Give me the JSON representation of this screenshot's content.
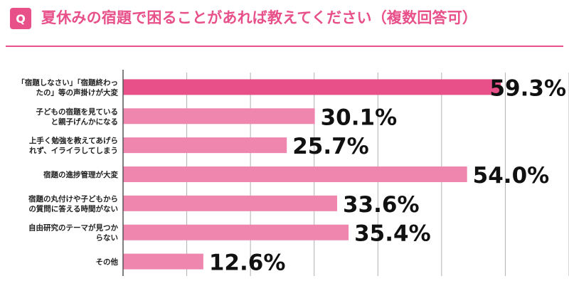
{
  "header": {
    "badge": "Q",
    "title": "夏休みの宿題で困ることがあれば教えてください（複数回答可）"
  },
  "chart_data": {
    "type": "bar",
    "orientation": "horizontal",
    "categories": [
      [
        "「宿題しなさい」「宿題終わっ",
        "たの」等の声掛けが大変"
      ],
      [
        "子どもの宿題を見ている",
        "と親子げんかになる"
      ],
      [
        "上手く勉強を教えてあげら",
        "れず、イライラしてしまう"
      ],
      [
        "宿題の進捗管理が大変"
      ],
      [
        "宿題の丸付けや子どもから",
        "の質問に答える時間がない"
      ],
      [
        "自由研究のテーマが見つか",
        "らない"
      ],
      [
        "その他"
      ]
    ],
    "values": [
      59.3,
      30.1,
      25.7,
      54.0,
      33.6,
      35.4,
      12.6
    ],
    "value_labels": [
      "59.3%",
      "30.1%",
      "25.7%",
      "54.0%",
      "33.6%",
      "35.4%",
      "12.6%"
    ],
    "xlim": [
      0,
      70
    ],
    "grid": true,
    "colors": {
      "highlight": "#e8508a",
      "bar": "#ef86ae",
      "grid": "#b0b0b0",
      "axis": "#555555"
    }
  }
}
